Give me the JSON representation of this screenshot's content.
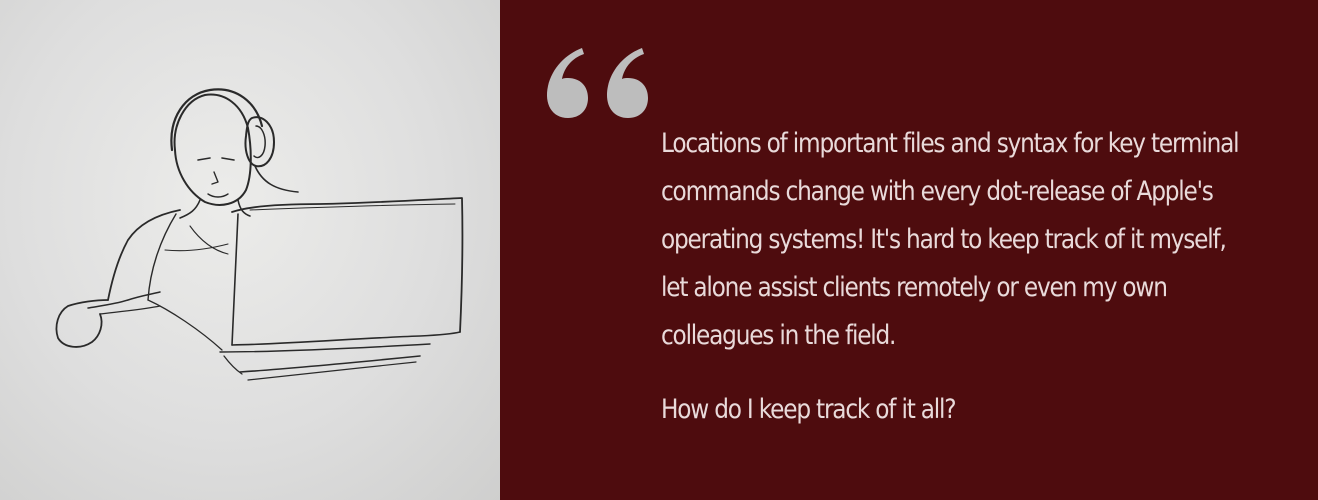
{
  "illustration": {
    "icon": "person-with-headset-at-laptop-sketch-icon"
  },
  "quote": {
    "mark_icon": "open-quote-icon",
    "mark_color": "#bdbdbd",
    "background_color": "#4e0c0e",
    "text_color": "#e9dada",
    "paragraph": "Locations of important files and syntax for key terminal commands change with every dot-release of Apple's operating systems! It's hard to keep track of it myself, let alone assist clients remotely or even my own colleagues in the field.",
    "question": "How do I keep track of it all?"
  }
}
